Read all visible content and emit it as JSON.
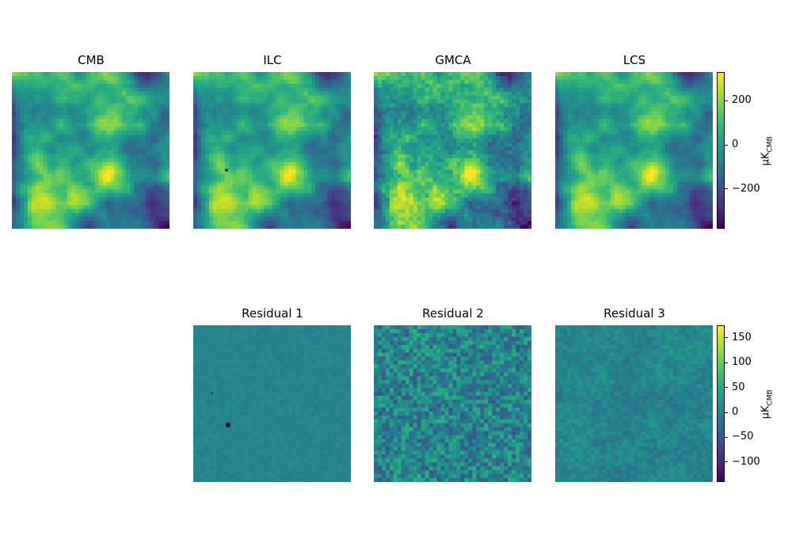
{
  "chart_data": [
    {
      "type": "heatmap",
      "colormap": "viridis",
      "row": "top",
      "panels": [
        {
          "title": "CMB",
          "kind": "smooth"
        },
        {
          "title": "ILC",
          "kind": "smooth+point"
        },
        {
          "title": "GMCA",
          "kind": "smooth+noise"
        },
        {
          "title": "LCS",
          "kind": "smooth"
        }
      ],
      "colorbar": {
        "label_main": "μK",
        "label_sub": "CMB",
        "range": [
          -380,
          330
        ],
        "ticks": [
          200,
          0,
          -200
        ],
        "tick_labels": [
          "200",
          "0",
          "−200"
        ]
      }
    },
    {
      "type": "heatmap",
      "colormap": "viridis",
      "row": "bottom",
      "panels": [
        {
          "title": "Residual 1",
          "kind": "flat+point"
        },
        {
          "title": "Residual 2",
          "kind": "noise-strong"
        },
        {
          "title": "Residual 3",
          "kind": "noise-soft"
        }
      ],
      "colorbar": {
        "label_main": "μK",
        "label_sub": "CMB",
        "range": [
          -140,
          175
        ],
        "ticks": [
          150,
          100,
          50,
          0,
          -50,
          -100
        ],
        "tick_labels": [
          "150",
          "100",
          "50",
          "0",
          "−50",
          "−100"
        ]
      }
    }
  ],
  "colors": {
    "viridis": [
      "#440154",
      "#482878",
      "#3e4989",
      "#31688e",
      "#26828e",
      "#1f9e89",
      "#35b779",
      "#6ece58",
      "#b5de2b",
      "#fde725"
    ]
  }
}
